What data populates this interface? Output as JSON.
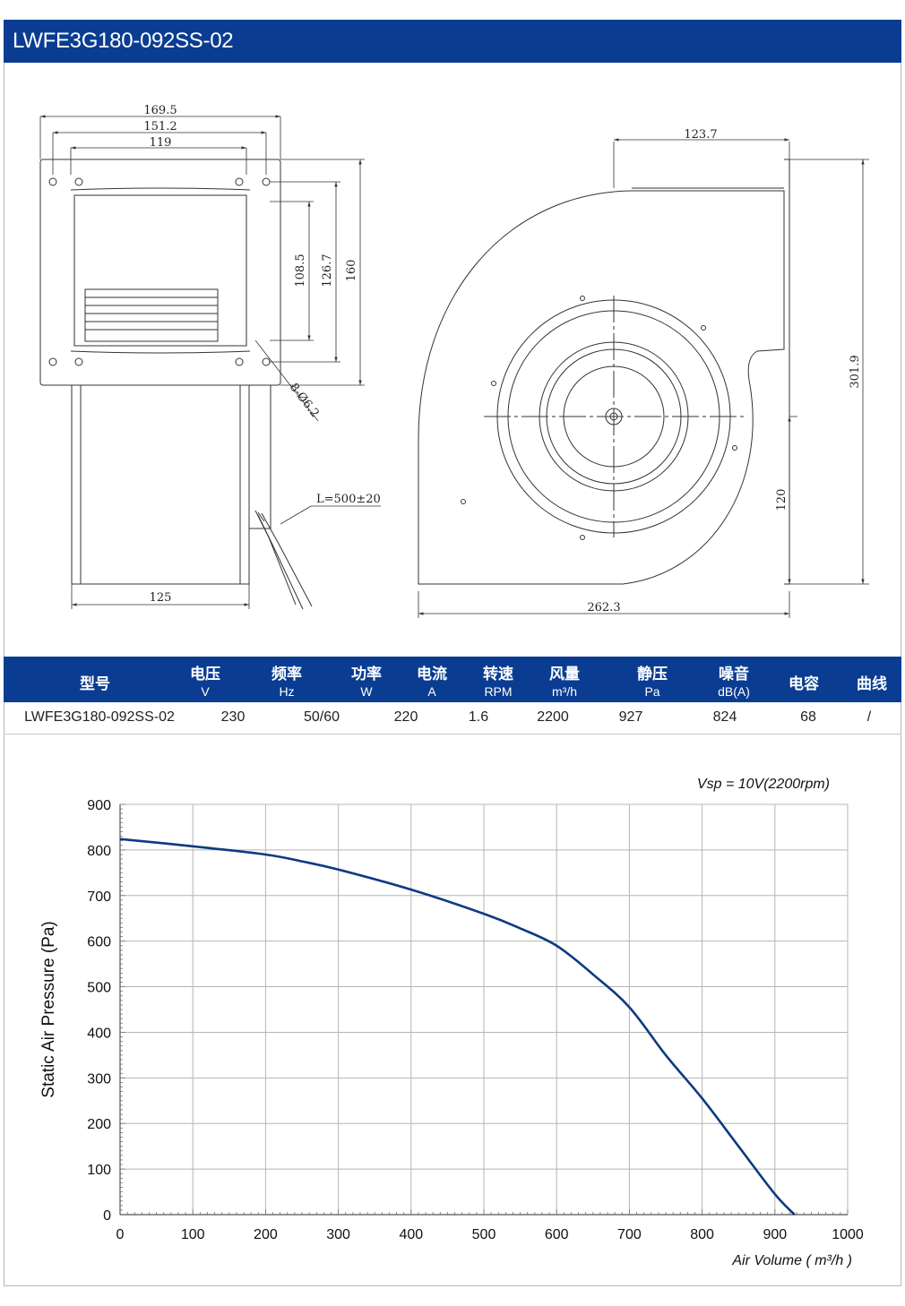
{
  "header": {
    "title": "LWFE3G180-092SS-02"
  },
  "drawing": {
    "dims_front": [
      "169.5",
      "151.2",
      "119",
      "108.5",
      "126.7",
      "160",
      "8-Ø6.2",
      "L=500±20",
      "125"
    ],
    "dims_side": [
      "123.7",
      "301.9",
      "120",
      "262.3"
    ]
  },
  "spec_table": {
    "columns": [
      {
        "label": "型号",
        "unit": ""
      },
      {
        "label": "电压",
        "unit": "V"
      },
      {
        "label": "频率",
        "unit": "Hz"
      },
      {
        "label": "功率",
        "unit": "W"
      },
      {
        "label": "电流",
        "unit": "A"
      },
      {
        "label": "转速",
        "unit": "RPM"
      },
      {
        "label": "风量",
        "unit": "m³/h"
      },
      {
        "label": "静压",
        "unit": "Pa"
      },
      {
        "label": "噪音",
        "unit": "dB(A)"
      },
      {
        "label": "电容",
        "unit": ""
      },
      {
        "label": "曲线",
        "unit": ""
      }
    ],
    "row": [
      "LWFE3G180-092SS-02",
      "230",
      "50/60",
      "220",
      "1.6",
      "2200",
      "927",
      "824",
      "68",
      "/"
    ]
  },
  "chart_data": {
    "type": "line",
    "annotation": "Vsp = 10V(2200rpm)",
    "xlabel": "Air Volume ( m³/h )",
    "ylabel": "Static Air Pressure  (Pa)",
    "xlim": [
      0,
      1000
    ],
    "ylim": [
      0,
      900
    ],
    "xticks": [
      "0",
      "100",
      "200",
      "300",
      "400",
      "500",
      "600",
      "700",
      "800",
      "900",
      "1000"
    ],
    "yticks": [
      "0",
      "100",
      "200",
      "300",
      "400",
      "500",
      "600",
      "700",
      "800",
      "900"
    ],
    "grid": true,
    "color": "#0d3a80",
    "series": [
      {
        "x": [
          0,
          100,
          200,
          250,
          300,
          400,
          500,
          550,
          600,
          650,
          700,
          750,
          800,
          850,
          900,
          927
        ],
        "values": [
          824,
          808,
          790,
          775,
          757,
          713,
          660,
          628,
          590,
          527,
          455,
          350,
          255,
          150,
          45,
          0
        ]
      }
    ]
  }
}
